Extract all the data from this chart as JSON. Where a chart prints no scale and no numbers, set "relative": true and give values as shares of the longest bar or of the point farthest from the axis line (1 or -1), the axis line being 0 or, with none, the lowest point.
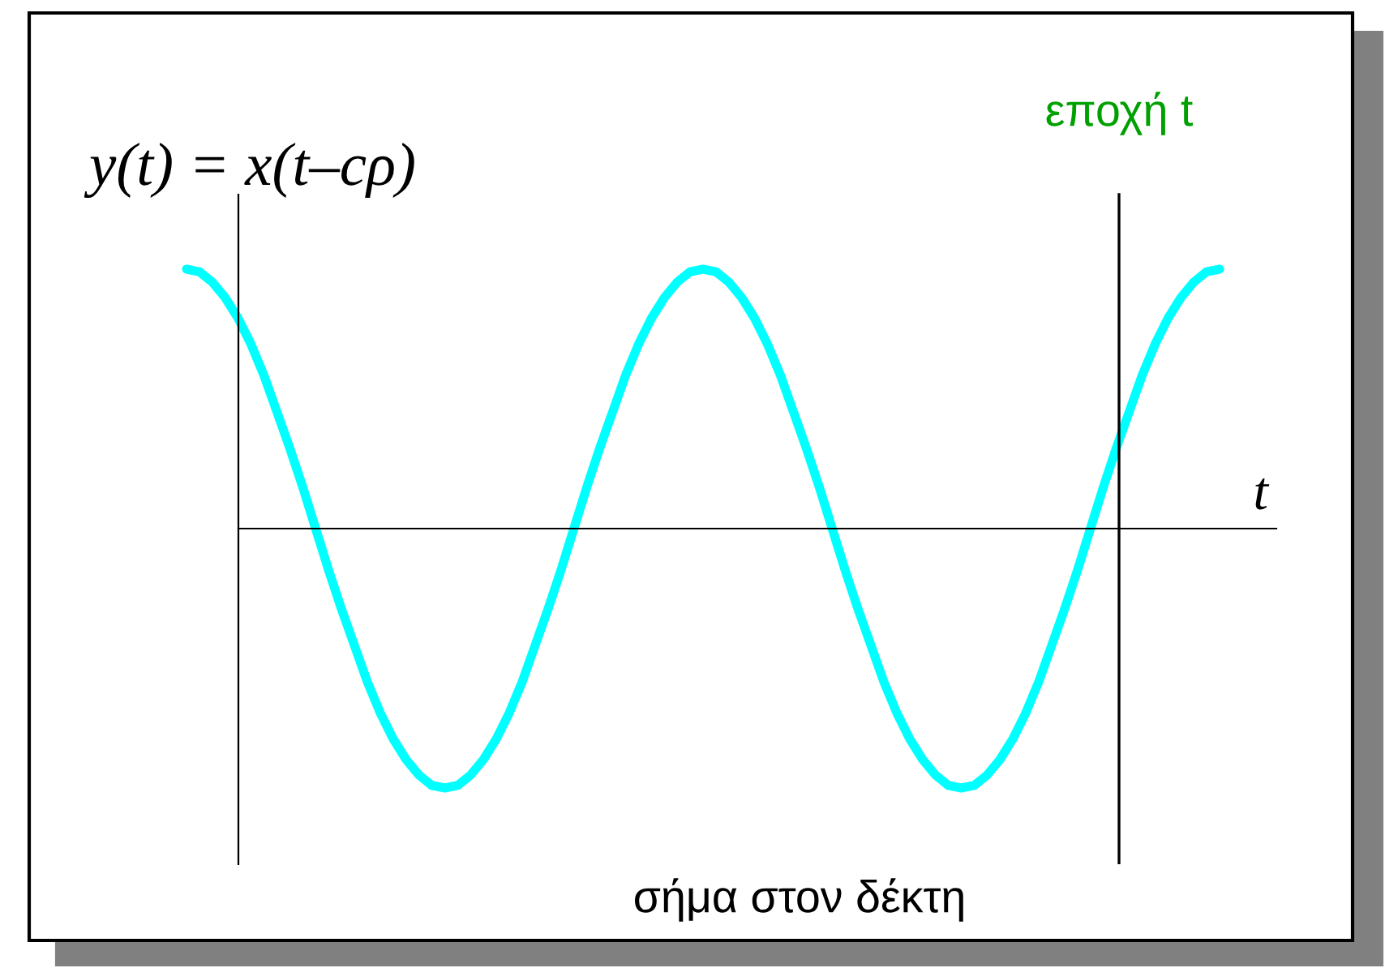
{
  "chart_data": {
    "type": "line",
    "relative": true,
    "xlabel": "t",
    "ylabel": "y(t) = x(t–cρ)",
    "categories": [
      null,
      null,
      null,
      null,
      null,
      null,
      null,
      null,
      null,
      null,
      null,
      null,
      null,
      null,
      null,
      null,
      null,
      null,
      null,
      null,
      null,
      null,
      null,
      null,
      null,
      null,
      null,
      null,
      null,
      null,
      null,
      null,
      null,
      null,
      null,
      null,
      null,
      null,
      null,
      null,
      null,
      null,
      null,
      null,
      null,
      null,
      null,
      null,
      null,
      null,
      null,
      null,
      null,
      null,
      null,
      null,
      null,
      null,
      null,
      null,
      null,
      null,
      null,
      null,
      null,
      null,
      null,
      null,
      null,
      null,
      null,
      null,
      null,
      null,
      null,
      null,
      null,
      null,
      null,
      null,
      null
    ],
    "series": [
      {
        "color": "#00ffff",
        "values": [
          1,
          0.99,
          0.95,
          0.89,
          0.81,
          0.71,
          0.59,
          0.45,
          0.31,
          0.16,
          0,
          -0.16,
          -0.31,
          -0.45,
          -0.59,
          -0.71,
          -0.81,
          -0.89,
          -0.95,
          -0.99,
          -1,
          -0.99,
          -0.95,
          -0.89,
          -0.81,
          -0.71,
          -0.59,
          -0.45,
          -0.31,
          -0.16,
          0,
          0.16,
          0.31,
          0.45,
          0.59,
          0.71,
          0.81,
          0.89,
          0.95,
          0.99,
          1,
          0.99,
          0.95,
          0.89,
          0.81,
          0.71,
          0.59,
          0.45,
          0.31,
          0.16,
          0,
          -0.16,
          -0.31,
          -0.45,
          -0.59,
          -0.71,
          -0.81,
          -0.89,
          -0.95,
          -0.99,
          -1,
          -0.99,
          -0.95,
          -0.89,
          -0.81,
          -0.71,
          -0.59,
          -0.45,
          -0.31,
          -0.16,
          0,
          0.16,
          0.31,
          0.45,
          0.59,
          0.71,
          0.81,
          0.89,
          0.95,
          0.99,
          1
        ]
      }
    ],
    "annotations": [
      "εποχή t",
      "σήμα στον δέκτη"
    ]
  }
}
